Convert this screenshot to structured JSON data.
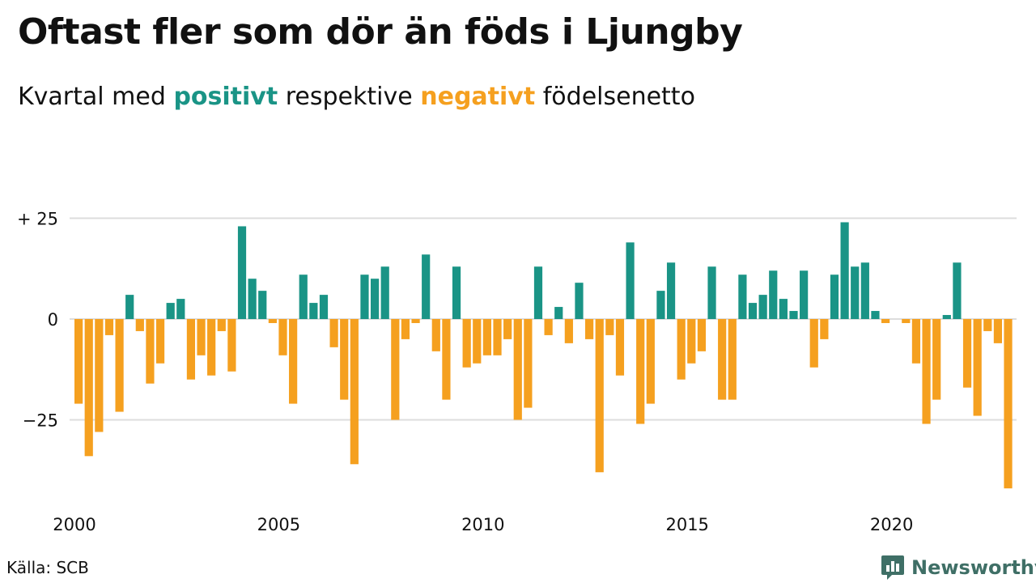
{
  "header": {
    "title": "Oftast fler som dör än föds i Ljungby",
    "subtitle_prefix": "Kvartal med",
    "subtitle_positive": "positivt",
    "subtitle_mid": "respektive",
    "subtitle_negative": "negativt",
    "subtitle_suffix": "födelsenetto"
  },
  "footer": {
    "source": "Källa: SCB",
    "brand": "Newsworthy"
  },
  "colors": {
    "positive": "#1a9486",
    "negative": "#f5a01f",
    "grid": "#dddddd",
    "brand": "#3f6f66"
  },
  "chart_data": {
    "type": "bar",
    "frequency": "quarterly",
    "x_start": "2000 Q1",
    "x_end": "2022 Q4",
    "x_tick_labels": [
      "2000",
      "2005",
      "2010",
      "2015",
      "2020"
    ],
    "y_tick_labels": [
      "+ 25",
      "0",
      "−25"
    ],
    "ylim": [
      -43,
      25
    ],
    "grid": true,
    "series": [
      {
        "values": [
          -21,
          -34,
          -28,
          -4,
          -23,
          6,
          -3,
          -16,
          -11,
          4,
          5,
          -15,
          -9,
          -14,
          -3,
          -13,
          23,
          10,
          7,
          -1,
          -9,
          -21,
          11,
          4,
          6,
          -7,
          -20,
          -36,
          11,
          10,
          13,
          -25,
          -5,
          -1,
          16,
          -8,
          -20,
          13,
          -12,
          -11,
          -9,
          -9,
          -5,
          -25,
          -22,
          13,
          -4,
          3,
          -6,
          9,
          -5,
          -38,
          -4,
          -14,
          19,
          -26,
          -21,
          7,
          14,
          -15,
          -11,
          -8,
          13,
          -20,
          -20,
          11,
          4,
          6,
          12,
          5,
          2,
          12,
          -12,
          -5,
          11,
          24,
          13,
          14,
          2,
          -1,
          0,
          -1,
          -11,
          -26,
          -20,
          1,
          14,
          -17,
          -24,
          -3,
          -6,
          -42
        ]
      }
    ]
  }
}
